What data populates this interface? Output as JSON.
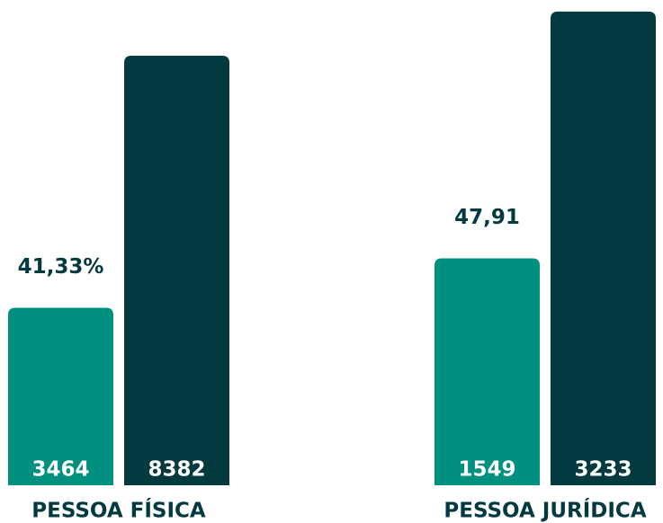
{
  "chart_data": [
    {
      "type": "bar",
      "xlabel": "PESSOA FÍSICA",
      "values": [
        3464,
        8382
      ],
      "colors": [
        "#00907f",
        "#023a40"
      ],
      "annotation": "41,33%",
      "ylim": [
        0,
        9470
      ]
    },
    {
      "type": "bar",
      "xlabel": "PESSOA JURÍDICA",
      "values": [
        1549,
        3233
      ],
      "colors": [
        "#00907f",
        "#023a40"
      ],
      "annotation": "47,91",
      "ylim": [
        0,
        3312
      ]
    }
  ]
}
